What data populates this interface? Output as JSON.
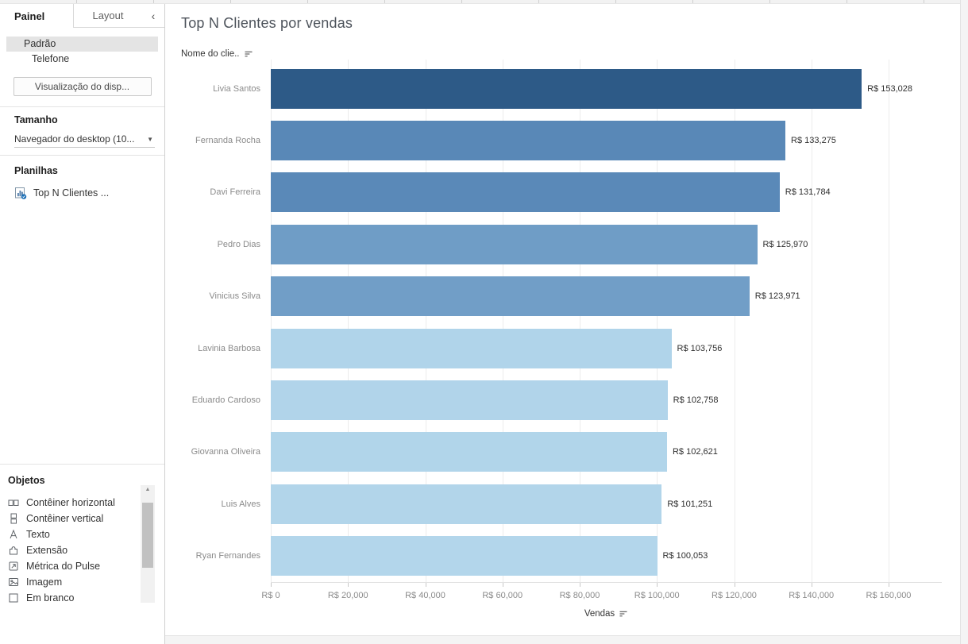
{
  "icons": {
    "collapse": "‹",
    "dropdown_caret": "▼",
    "scroll_up": "▲"
  },
  "sidebar": {
    "tabs": {
      "painel": "Painel",
      "layout": "Layout"
    },
    "devices": {
      "default": "Padrão",
      "phone": "Telefone",
      "preview_button": "Visualização do disp..."
    },
    "size_section": {
      "heading": "Tamanho",
      "dropdown_value": "Navegador do desktop (10..."
    },
    "sheets_section": {
      "heading": "Planilhas",
      "items": [
        {
          "label": "Top N Clientes ..."
        }
      ]
    },
    "objects_section": {
      "heading": "Objetos",
      "items": [
        {
          "icon": "horizontal-container-icon",
          "label": "Contêiner horizontal"
        },
        {
          "icon": "vertical-container-icon",
          "label": "Contêiner vertical"
        },
        {
          "icon": "text-icon",
          "label": "Texto"
        },
        {
          "icon": "extension-icon",
          "label": "Extensão"
        },
        {
          "icon": "pulse-metric-icon",
          "label": "Métrica do Pulse"
        },
        {
          "icon": "image-icon",
          "label": "Imagem"
        },
        {
          "icon": "blank-icon",
          "label": "Em branco"
        }
      ]
    }
  },
  "main": {
    "title": "Top N Clientes por vendas",
    "row_header": "Nome do clie..",
    "axis_title": "Vendas"
  },
  "chart_data": {
    "type": "bar",
    "orientation": "horizontal",
    "title": "Top N Clientes por vendas",
    "row_header": "Nome do clie..",
    "xlabel": "Vendas",
    "sort": "descending-by-value",
    "grid": "vertical-light",
    "categories": [
      "Livia Santos",
      "Fernanda Rocha",
      "Davi Ferreira",
      "Pedro Dias",
      "Vinicius Silva",
      "Lavinia Barbosa",
      "Eduardo Cardoso",
      "Giovanna Oliveira",
      "Luis Alves",
      "Ryan Fernandes"
    ],
    "values": [
      153028,
      133275,
      131784,
      125970,
      123971,
      103756,
      102758,
      102621,
      101251,
      100053
    ],
    "value_labels": [
      "R$ 153,028",
      "R$ 133,275",
      "R$ 131,784",
      "R$ 125,970",
      "R$ 123,971",
      "R$ 103,756",
      "R$ 102,758",
      "R$ 102,621",
      "R$ 101,251",
      "R$ 100,053"
    ],
    "bar_colors": [
      "#2d5a87",
      "#5988b7",
      "#5a89b8",
      "#6f9dc6",
      "#719ec7",
      "#b0d4ea",
      "#b1d4ea",
      "#b1d5ea",
      "#b2d5ea",
      "#b3d6eb"
    ],
    "x_ticks": [
      0,
      20000,
      40000,
      60000,
      80000,
      100000,
      120000,
      140000,
      160000
    ],
    "x_tick_labels": [
      "R$ 0",
      "R$ 20,000",
      "R$ 40,000",
      "R$ 60,000",
      "R$ 80,000",
      "R$ 100,000",
      "R$ 120,000",
      "R$ 140,000",
      "R$ 160,000"
    ],
    "xlim": [
      0,
      160000
    ]
  },
  "colors": {
    "accent_dark_bar": "#2d5a87",
    "accent_light_bar": "#b3d6eb",
    "selected_row_bg": "#e4e4e4",
    "canvas_bg": "#ffffff",
    "frame_bg": "#f4f4f4"
  }
}
